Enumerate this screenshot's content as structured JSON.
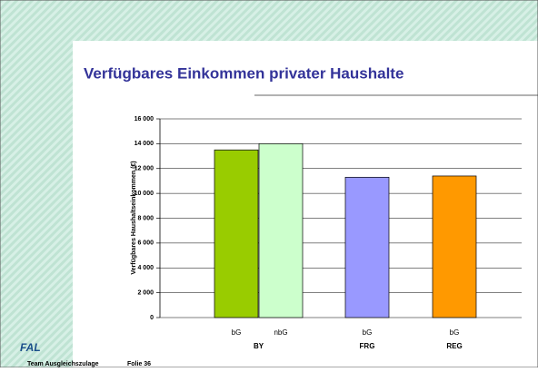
{
  "chart_data": {
    "type": "bar",
    "title": "Verfügbares Einkommen privater Haushalte",
    "y_label": "Verfügbares Haushaltseinkommen (€)",
    "categories": [
      "bG",
      "nbG",
      "bG",
      "bG"
    ],
    "groups": [
      "BY",
      "FRG",
      "REG"
    ],
    "values": [
      13500,
      14000,
      11300,
      11400
    ],
    "colors": [
      "#99cc00",
      "#ccffcc",
      "#9999ff",
      "#ff9900"
    ],
    "ylim": [
      0,
      16000
    ],
    "yticks": [
      0,
      {
        "value": 2000,
        "label": "2 000"
      },
      {
        "value": 4000,
        "label": "4 000"
      },
      {
        "value": 6000,
        "label": "6 000"
      },
      {
        "value": 8000,
        "label": "8 000"
      },
      {
        "value": 10000,
        "label": "10 000"
      },
      {
        "value": 12000,
        "label": "12 000"
      },
      {
        "value": 14000,
        "label": "14 000"
      },
      {
        "value": 16000,
        "label": "16 000"
      }
    ],
    "grid": true
  },
  "footer": {
    "logo": "FAL",
    "team": "Team Ausgleichszulage",
    "slide": "Folie 36"
  }
}
